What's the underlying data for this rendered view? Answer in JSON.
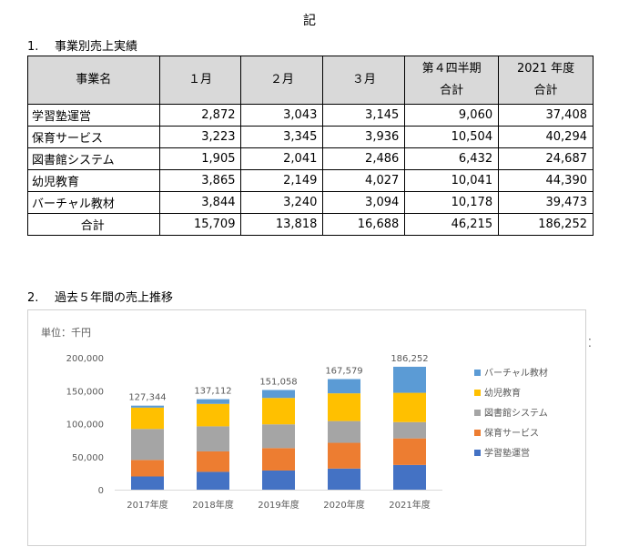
{
  "document": {
    "title": "記",
    "section1": {
      "number": "1.",
      "title": "事業別売上実績"
    },
    "section2": {
      "number": "2.",
      "title": "過去５年間の売上推移"
    },
    "side_mark": "⁚"
  },
  "table": {
    "headers": {
      "name": "事業名",
      "m1": "１月",
      "m2": "２月",
      "m3": "３月",
      "q4_line1": "第４四半期",
      "q4_line2": "合計",
      "fy_line1": "2021 年度",
      "fy_line2": "合計"
    },
    "rows": [
      {
        "name": "学習塾運営",
        "m1": "2,872",
        "m2": "3,043",
        "m3": "3,145",
        "q4": "9,060",
        "fy": "37,408"
      },
      {
        "name": "保育サービス",
        "m1": "3,223",
        "m2": "3,345",
        "m3": "3,936",
        "q4": "10,504",
        "fy": "40,294"
      },
      {
        "name": "図書館システム",
        "m1": "1,905",
        "m2": "2,041",
        "m3": "2,486",
        "q4": "6,432",
        "fy": "24,687"
      },
      {
        "name": "幼児教育",
        "m1": "3,865",
        "m2": "2,149",
        "m3": "4,027",
        "q4": "10,041",
        "fy": "44,390"
      },
      {
        "name": "バーチャル教材",
        "m1": "3,844",
        "m2": "3,240",
        "m3": "3,094",
        "q4": "10,178",
        "fy": "39,473"
      }
    ],
    "total": {
      "name": "合計",
      "m1": "15,709",
      "m2": "13,818",
      "m3": "16,688",
      "q4": "46,215",
      "fy": "186,252"
    }
  },
  "chart_data": {
    "type": "bar",
    "stacked": true,
    "unit_label": "単位：千円",
    "categories": [
      "2017年度",
      "2018年度",
      "2019年度",
      "2020年度",
      "2021年度"
    ],
    "ylim": [
      0,
      200000
    ],
    "yticks": [
      "0",
      "50,000",
      "100,000",
      "150,000",
      "200,000"
    ],
    "ytick_values": [
      0,
      50000,
      100000,
      150000,
      200000
    ],
    "totals": [
      "127,344",
      "137,112",
      "151,058",
      "167,579",
      "186,252"
    ],
    "series": [
      {
        "name": "学習塾運営",
        "color": "#4472c4",
        "values": [
          20000,
          27000,
          29000,
          32000,
          37408
        ]
      },
      {
        "name": "保育サービス",
        "color": "#ed7d31",
        "values": [
          25000,
          31000,
          34000,
          39000,
          40294
        ]
      },
      {
        "name": "図書館システム",
        "color": "#a5a5a5",
        "values": [
          47000,
          38000,
          36000,
          33000,
          24687
        ]
      },
      {
        "name": "幼児教育",
        "color": "#ffc000",
        "values": [
          32344,
          34000,
          40000,
          42000,
          44390
        ]
      },
      {
        "name": "バーチャル教材",
        "color": "#5b9bd5",
        "values": [
          3000,
          7112,
          12058,
          21579,
          39473
        ]
      }
    ],
    "legend_position": "right",
    "legend_order": "reverse",
    "grid": false
  }
}
